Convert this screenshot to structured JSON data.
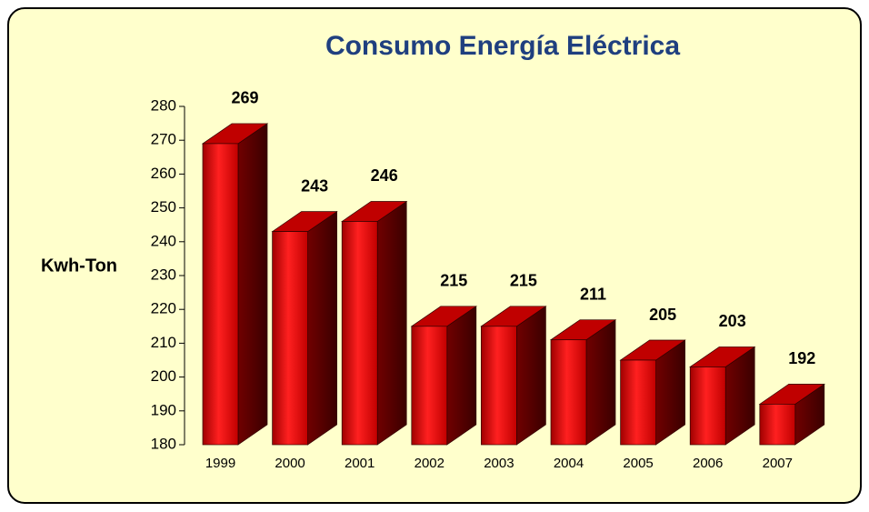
{
  "chart_data": {
    "type": "bar3d",
    "title": "Consumo Energía Eléctrica",
    "y_label": "Kwh-Ton",
    "categories": [
      "1999",
      "2000",
      "2001",
      "2002",
      "2003",
      "2004",
      "2005",
      "2006",
      "2007"
    ],
    "values": [
      269,
      243,
      246,
      215,
      215,
      211,
      205,
      203,
      192
    ],
    "color": "#ff0000",
    "ylim": [
      180,
      280
    ],
    "yticks": [
      180,
      190,
      200,
      210,
      220,
      230,
      240,
      250,
      260,
      270,
      280
    ],
    "grid": false
  }
}
